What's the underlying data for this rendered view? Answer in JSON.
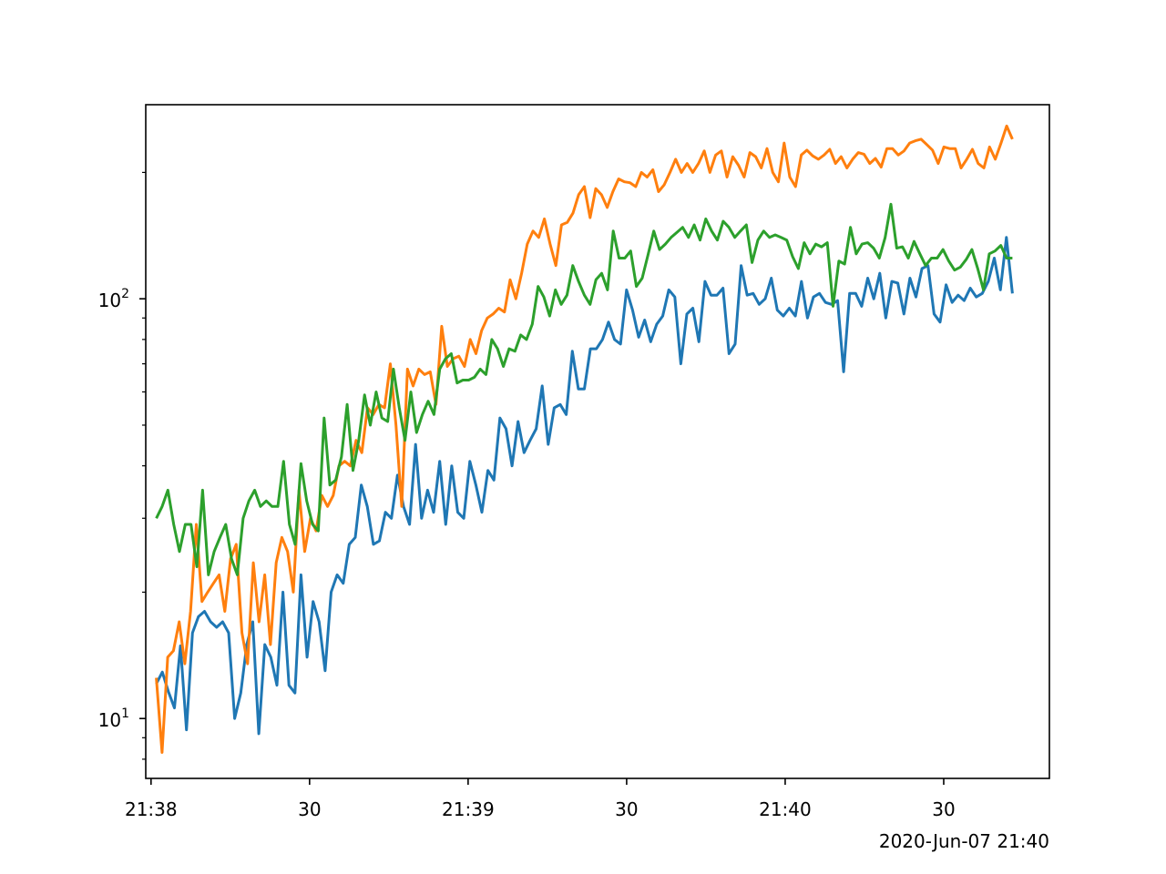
{
  "chart_data": {
    "type": "line",
    "title": "",
    "xlabel": "",
    "ylabel": "",
    "yscale": "log",
    "ylim": [
      7.2,
      290
    ],
    "x_start": "21:38:01",
    "x_end": "21:40:43",
    "xlim": [
      "21:37:59",
      "21:40:50"
    ],
    "x_step_seconds": 1.15,
    "x_ticks": [
      {
        "time": "21:38:00",
        "label": "21:38"
      },
      {
        "time": "21:38:30",
        "label": "30"
      },
      {
        "time": "21:39:00",
        "label": "21:39"
      },
      {
        "time": "21:39:30",
        "label": "30"
      },
      {
        "time": "21:40:00",
        "label": "21:40"
      },
      {
        "time": "21:40:30",
        "label": "30"
      }
    ],
    "x_offset_label": "2020-Jun-07 21:40",
    "y_ticks": [
      {
        "value": 10,
        "label": "10",
        "exp": "1"
      },
      {
        "value": 100,
        "label": "10",
        "exp": "2"
      }
    ],
    "grid": false,
    "legend": "none",
    "series": [
      {
        "color": "#1f77b4",
        "values": [
          12.1,
          12.9,
          11.6,
          10.6,
          14.9,
          9.4,
          16.0,
          17.5,
          18.0,
          17.0,
          16.5,
          17.0,
          16.0,
          10.0,
          11.5,
          15.0,
          17.0,
          9.2,
          15.0,
          14.0,
          12.0,
          20.0,
          12.0,
          11.5,
          22.0,
          14.0,
          19.0,
          17.0,
          13.0,
          20.0,
          22.0,
          21.0,
          26.0,
          27.0,
          36.0,
          32.0,
          26.0,
          26.5,
          31.0,
          30.0,
          38.0,
          32.0,
          29.0,
          45.0,
          30.0,
          35.0,
          31.0,
          41.0,
          29.0,
          40.0,
          31.0,
          30.0,
          41.0,
          36.0,
          31.0,
          39.0,
          37.0,
          52.0,
          49.0,
          40.0,
          51.0,
          43.0,
          46.0,
          49.0,
          62.0,
          45.0,
          55.0,
          56.0,
          53.0,
          75.0,
          61.0,
          61.0,
          76.0,
          76.0,
          80.0,
          88.0,
          80.0,
          78.0,
          105.0,
          94.0,
          81.0,
          89.0,
          79.0,
          87.0,
          91.0,
          105.0,
          101.0,
          70.0,
          92.0,
          95.0,
          79.0,
          110.0,
          102.0,
          102.0,
          106.0,
          74.0,
          78.0,
          120.0,
          102.0,
          103.0,
          97.0,
          100.0,
          112.0,
          94.0,
          91.0,
          95.0,
          91.0,
          110.0,
          90.0,
          101.0,
          103.0,
          98.0,
          97.0,
          99.0,
          67.0,
          103.0,
          103.0,
          96.0,
          112.0,
          100.0,
          115.0,
          90.0,
          110.0,
          109.0,
          92.0,
          112.0,
          101.0,
          118.0,
          120.0,
          92.0,
          88.0,
          108.0,
          98.0,
          102.0,
          99.0,
          106.0,
          101.0,
          103.0,
          110.0,
          125.0,
          105.0,
          140.0,
          103.0
        ]
      },
      {
        "color": "#ff7f0e",
        "values": [
          12.5,
          8.3,
          14.0,
          14.5,
          17.0,
          13.5,
          18.0,
          29.0,
          19.0,
          20.0,
          21.0,
          22.0,
          18.0,
          24.0,
          26.0,
          16.0,
          13.5,
          23.5,
          17.0,
          22.0,
          15.0,
          23.5,
          27.0,
          25.0,
          20.0,
          35.0,
          25.0,
          30.0,
          28.0,
          34.0,
          32.0,
          34.0,
          40.0,
          41.0,
          40.0,
          46.0,
          43.0,
          55.0,
          53.0,
          56.0,
          55.0,
          70.0,
          50.0,
          32.0,
          68.0,
          62.0,
          68.0,
          66.0,
          67.0,
          56.0,
          86.0,
          69.0,
          72.0,
          73.0,
          69.0,
          80.0,
          74.0,
          84.0,
          90.0,
          92.0,
          95.0,
          93.0,
          111.0,
          100.0,
          115.0,
          135.0,
          145.0,
          140.0,
          155.0,
          135.0,
          120.0,
          150.0,
          152.0,
          160.0,
          177.0,
          185.0,
          156.0,
          183.0,
          177.0,
          165.0,
          180.0,
          193.0,
          190.0,
          189.0,
          185.0,
          200.0,
          195.0,
          203.0,
          180.0,
          187.0,
          200.0,
          215.0,
          200.0,
          210.0,
          200.0,
          210.0,
          225.0,
          200.0,
          220.0,
          225.0,
          195.0,
          218.0,
          208.0,
          195.0,
          223.0,
          218.0,
          205.0,
          228.0,
          200.0,
          190.0,
          235.0,
          195.0,
          185.0,
          220.0,
          226.0,
          219.0,
          215.0,
          220.0,
          227.0,
          210.0,
          218.0,
          205.0,
          215.0,
          223.0,
          221.0,
          210.0,
          216.0,
          206.0,
          228.0,
          228.0,
          220.0,
          225.0,
          235.0,
          238.0,
          240.0,
          233.0,
          226.0,
          210.0,
          230.0,
          228.0,
          228.0,
          205.0,
          215.0,
          227.0,
          210.0,
          205.0,
          230.0,
          215.0,
          235.0,
          258.0,
          240.0
        ]
      },
      {
        "color": "#2ca02c",
        "values": [
          30.0,
          32.0,
          35.0,
          29.0,
          25.0,
          29.0,
          29.0,
          23.0,
          35.0,
          22.0,
          25.0,
          27.0,
          29.0,
          24.0,
          22.0,
          30.0,
          33.0,
          35.0,
          32.0,
          33.0,
          32.0,
          32.0,
          41.0,
          29.0,
          26.0,
          40.5,
          33.0,
          29.0,
          28.0,
          52.0,
          36.0,
          37.0,
          42.0,
          56.0,
          39.0,
          46.0,
          59.0,
          50.0,
          60.0,
          52.0,
          51.0,
          68.0,
          55.0,
          46.0,
          60.0,
          48.0,
          53.0,
          57.0,
          53.0,
          68.0,
          72.0,
          74.0,
          63.0,
          64.0,
          64.0,
          65.0,
          68.0,
          66.0,
          80.0,
          76.0,
          69.0,
          76.0,
          75.0,
          82.0,
          80.0,
          87.0,
          107.0,
          101.0,
          91.0,
          105.0,
          97.0,
          102.0,
          120.0,
          110.0,
          102.0,
          97.0,
          111.0,
          115.0,
          105.0,
          145.0,
          125.0,
          125.0,
          130.0,
          107.0,
          112.0,
          127.0,
          145.0,
          131.0,
          135.0,
          140.0,
          144.0,
          148.0,
          140.0,
          150.0,
          138.0,
          155.0,
          145.0,
          138.0,
          153.0,
          148.0,
          140.0,
          145.0,
          150.0,
          122.0,
          138.0,
          145.0,
          140.0,
          142.0,
          140.0,
          138.0,
          126.0,
          118.0,
          136.0,
          128.0,
          135.0,
          133.0,
          136.0,
          96.0,
          123.0,
          121.0,
          148.0,
          128.0,
          135.0,
          136.0,
          132.0,
          125.0,
          140.0,
          168.0,
          132.0,
          133.0,
          125.0,
          137.0,
          128.0,
          120.0,
          125.0,
          125.0,
          131.0,
          123.0,
          117.0,
          119.0,
          124.0,
          131.0,
          118.0,
          105.0,
          128.0,
          130.0,
          134.0,
          125.0,
          125.0
        ]
      }
    ]
  }
}
